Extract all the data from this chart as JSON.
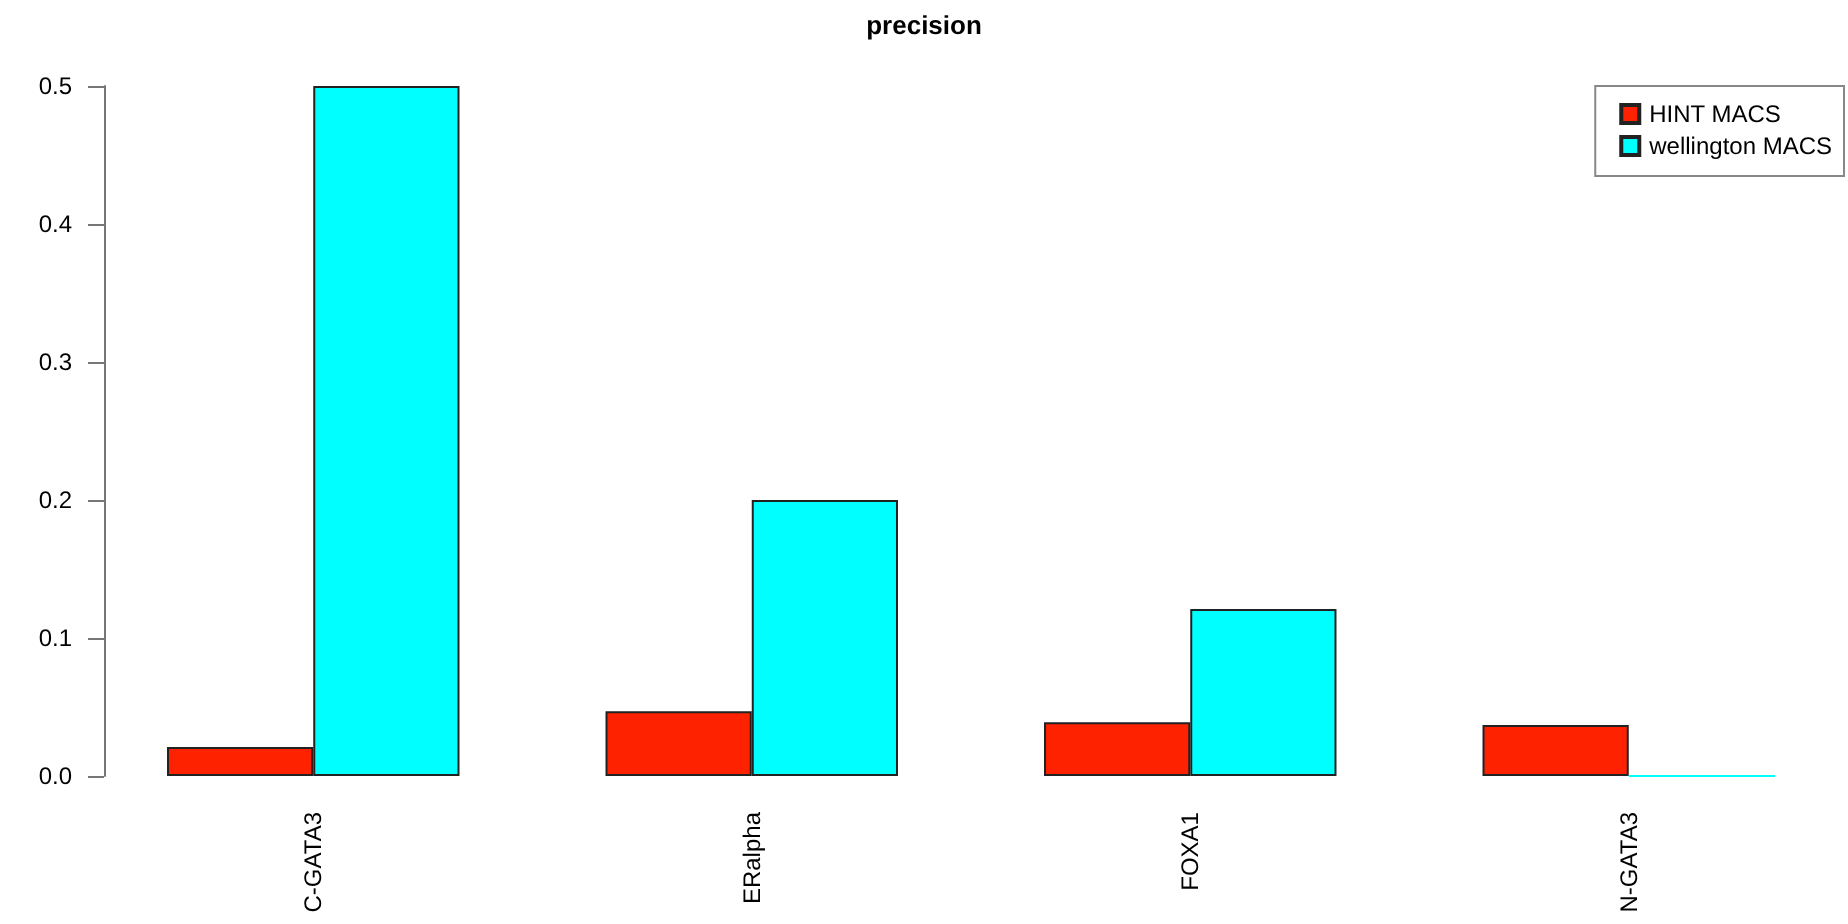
{
  "chart_data": {
    "type": "bar",
    "title": "precision",
    "categories": [
      "C-GATA3",
      "ERalpha",
      "FOXA1",
      "N-GATA3"
    ],
    "series": [
      {
        "name": "HINT MACS",
        "color": "#ff2200",
        "values": [
          0.021,
          0.047,
          0.039,
          0.037
        ]
      },
      {
        "name": "wellington MACS",
        "color": "#00ffff",
        "values": [
          0.5,
          0.2,
          0.121,
          0
        ]
      }
    ],
    "ylim": [
      0,
      0.5
    ],
    "yticks": [
      {
        "value": 0,
        "label": "0.0"
      },
      0.1,
      0.2,
      0.3,
      0.4,
      0.5
    ],
    "legend": "top right"
  }
}
